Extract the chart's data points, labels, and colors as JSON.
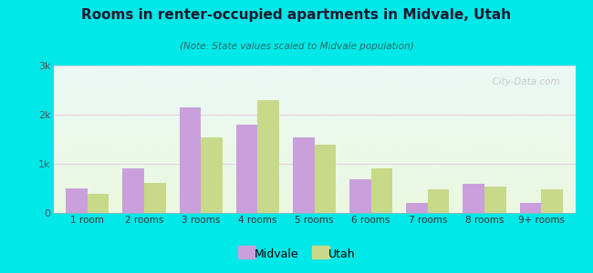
{
  "categories": [
    "1 room",
    "2 rooms",
    "3 rooms",
    "4 rooms",
    "5 rooms",
    "6 rooms",
    "7 rooms",
    "8 rooms",
    "9+ rooms"
  ],
  "midvale": [
    500,
    900,
    2150,
    1800,
    1540,
    680,
    200,
    590,
    200
  ],
  "utah": [
    380,
    620,
    1530,
    2300,
    1380,
    900,
    480,
    530,
    490
  ],
  "midvale_color": "#c9a0dc",
  "utah_color": "#c8d98a",
  "title": "Rooms in renter-occupied apartments in Midvale, Utah",
  "subtitle": "(Note: State values scaled to Midvale population)",
  "bg_outer": "#00e8e8",
  "ylim": [
    0,
    3000
  ],
  "yticks": [
    0,
    1000,
    2000,
    3000
  ],
  "ytick_labels": [
    "0",
    "1k",
    "2k",
    "3k"
  ],
  "bar_width": 0.38,
  "watermark": "  City-Data.com",
  "title_color": "#1a1a2e",
  "subtitle_color": "#2a6a6a"
}
